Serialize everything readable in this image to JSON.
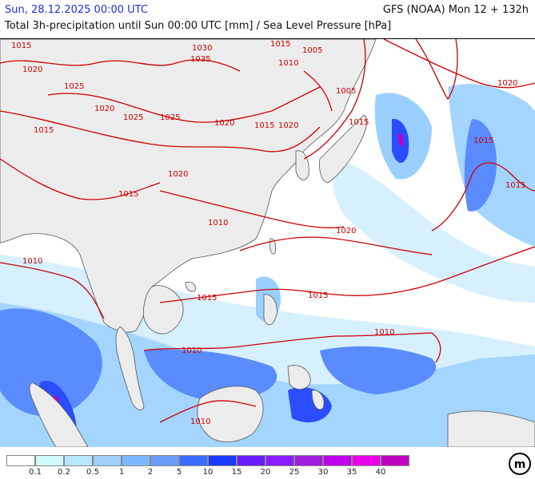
{
  "header": {
    "date": "Sun, 28.12.2025 00:00 UTC",
    "model": "GFS (NOAA) Mon 12 + 132h",
    "subtitle": "Total 3h-precipitation until Sun 00:00 UTC [mm] / Sea Level Pressure [hPa]"
  },
  "colors": {
    "land": "#ececec",
    "coast": "#555555",
    "isobar": "#cc0000",
    "precip_light": "#d6f0ff",
    "precip_mid": "#9ad0ff",
    "precip_blue": "#5a8cff",
    "precip_deep": "#2a4dff",
    "precip_magenta": "#c000c0"
  },
  "isobar_labels": [
    "1015",
    "1020",
    "1025",
    "1030",
    "1035",
    "1015",
    "1005",
    "1010",
    "1020",
    "1025",
    "1015",
    "1020",
    "1025",
    "1020",
    "1015",
    "1020",
    "1015",
    "1010",
    "1015",
    "1020",
    "1020",
    "1015",
    "1015",
    "1010",
    "1010",
    "1010",
    "1015",
    "1010",
    "1005",
    "1015"
  ],
  "legend": {
    "colors": [
      "#ffffff",
      "#d0fbfb",
      "#b8e6fb",
      "#9ed0fb",
      "#7db8fb",
      "#6a9cfb",
      "#3a6cff",
      "#1c3aff",
      "#6a1cff",
      "#8a1cff",
      "#a01cdc",
      "#c000e8",
      "#e800e8",
      "#c000c0"
    ],
    "ticks": [
      "0.1",
      "0.2",
      "0.5",
      "1",
      "2",
      "5",
      "10",
      "15",
      "20",
      "25",
      "30",
      "35",
      "40"
    ]
  },
  "logo_text": "m"
}
